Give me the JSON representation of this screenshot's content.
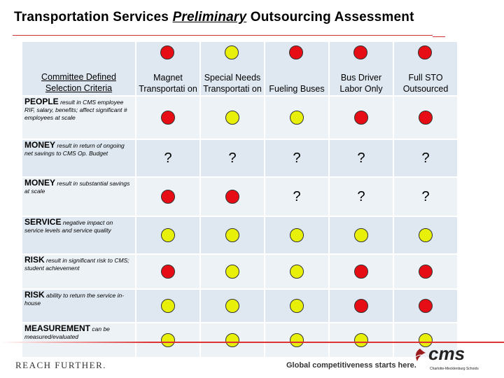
{
  "title": {
    "pre": "Transportation Services ",
    "emph": "Preliminary",
    "post": " Outsourcing Assessment"
  },
  "header": {
    "criteria_label": "Committee Defined Selection Criteria",
    "columns": [
      {
        "label": "Magnet Transportati on",
        "dot": "red"
      },
      {
        "label": "Special Needs Transportati on",
        "dot": "yellow"
      },
      {
        "label": "Fueling Buses",
        "dot": "red"
      },
      {
        "label": "Bus Driver Labor Only",
        "dot": "red"
      },
      {
        "label": "Full STO Outsourced",
        "dot": "red"
      }
    ]
  },
  "rows": [
    {
      "name": "PEOPLE",
      "desc": "result in CMS employee RIF, salary, benefits; affect significant # employees at scale",
      "cells": [
        "red",
        "yellow",
        "yellow",
        "red",
        "red"
      ]
    },
    {
      "name": "MONEY",
      "desc": "result in return of ongoing net savings to CMS Op. Budget",
      "cells": [
        "?",
        "?",
        "?",
        "?",
        "?"
      ]
    },
    {
      "name": "MONEY",
      "desc": "result in substantial savings at scale",
      "cells": [
        "red",
        "red",
        "?",
        "?",
        "?"
      ]
    },
    {
      "name": "SERVICE",
      "desc": "negative impact on service levels and service quality",
      "cells": [
        "yellow",
        "yellow",
        "yellow",
        "yellow",
        "yellow"
      ]
    },
    {
      "name": "RISK",
      "desc": "result in significant risk to CMS; student achievement",
      "cells": [
        "red",
        "yellow",
        "yellow",
        "red",
        "red"
      ]
    },
    {
      "name": "RISK",
      "desc": "ability to return the service in-house",
      "cells": [
        "yellow",
        "yellow",
        "yellow",
        "red",
        "red"
      ]
    },
    {
      "name": "MEASUREMENT",
      "desc": "can be measured/evaluated",
      "cells": [
        "yellow",
        "yellow",
        "yellow",
        "yellow",
        "yellow"
      ]
    }
  ],
  "footer": {
    "left": "REACH FURTHER.",
    "tagline": "Global competitiveness starts here.",
    "logo": "cms",
    "logo_sub": "Charlotte-Mecklenburg Schools"
  },
  "colors": {
    "red": "#e60d14",
    "yellow": "#e8f00a",
    "cell": "#dfe8f1"
  }
}
